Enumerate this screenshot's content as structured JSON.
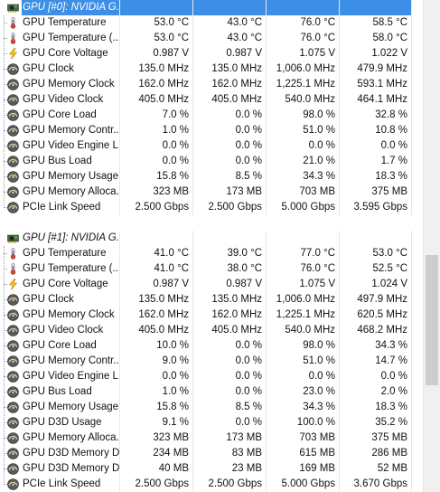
{
  "colors": {
    "selection": "#3d8ee6",
    "thumb": "#cdcdcd"
  },
  "groups": [
    {
      "label": "GPU [#0]: NVIDIA G...",
      "icon": "gpu-chip-icon",
      "selected": true,
      "rows": [
        {
          "icon": "thermometer-icon",
          "label": "GPU Temperature",
          "values": [
            "53.0 °C",
            "43.0 °C",
            "76.0 °C",
            "58.5 °C"
          ]
        },
        {
          "icon": "thermometer-icon",
          "label": "GPU Temperature (...",
          "values": [
            "53.0 °C",
            "43.0 °C",
            "76.0 °C",
            "58.0 °C"
          ]
        },
        {
          "icon": "lightning-icon",
          "label": "GPU Core Voltage",
          "values": [
            "0.987 V",
            "0.987 V",
            "1.075 V",
            "1.022 V"
          ]
        },
        {
          "icon": "gauge-icon",
          "label": "GPU Clock",
          "values": [
            "135.0 MHz",
            "135.0 MHz",
            "1,006.0 MHz",
            "479.9 MHz"
          ]
        },
        {
          "icon": "gauge-icon",
          "label": "GPU Memory Clock",
          "values": [
            "162.0 MHz",
            "162.0 MHz",
            "1,225.1 MHz",
            "593.1 MHz"
          ]
        },
        {
          "icon": "gauge-icon",
          "label": "GPU Video Clock",
          "values": [
            "405.0 MHz",
            "405.0 MHz",
            "540.0 MHz",
            "464.1 MHz"
          ]
        },
        {
          "icon": "gauge-icon",
          "label": "GPU Core Load",
          "values": [
            "7.0 %",
            "0.0 %",
            "98.0 %",
            "32.8 %"
          ]
        },
        {
          "icon": "gauge-icon",
          "label": "GPU Memory Contr...",
          "values": [
            "1.0 %",
            "0.0 %",
            "51.0 %",
            "10.8 %"
          ]
        },
        {
          "icon": "gauge-icon",
          "label": "GPU Video Engine L...",
          "values": [
            "0.0 %",
            "0.0 %",
            "0.0 %",
            "0.0 %"
          ]
        },
        {
          "icon": "gauge-icon",
          "label": "GPU Bus Load",
          "values": [
            "0.0 %",
            "0.0 %",
            "21.0 %",
            "1.7 %"
          ]
        },
        {
          "icon": "gauge-icon",
          "label": "GPU Memory Usage",
          "values": [
            "15.8 %",
            "8.5 %",
            "34.3 %",
            "18.3 %"
          ]
        },
        {
          "icon": "gauge-icon",
          "label": "GPU Memory Alloca...",
          "values": [
            "323 MB",
            "173 MB",
            "703 MB",
            "375 MB"
          ]
        },
        {
          "icon": "gauge-icon",
          "label": "PCIe Link Speed",
          "values": [
            "2.500 Gbps",
            "2.500 Gbps",
            "5.000 Gbps",
            "3.595 Gbps"
          ]
        }
      ]
    },
    {
      "label": "GPU [#1]: NVIDIA G...",
      "icon": "gpu-chip-icon",
      "selected": false,
      "rows": [
        {
          "icon": "thermometer-icon",
          "label": "GPU Temperature",
          "values": [
            "41.0 °C",
            "39.0 °C",
            "77.0 °C",
            "53.0 °C"
          ]
        },
        {
          "icon": "thermometer-icon",
          "label": "GPU Temperature (...",
          "values": [
            "41.0 °C",
            "38.0 °C",
            "76.0 °C",
            "52.5 °C"
          ]
        },
        {
          "icon": "lightning-icon",
          "label": "GPU Core Voltage",
          "values": [
            "0.987 V",
            "0.987 V",
            "1.075 V",
            "1.024 V"
          ]
        },
        {
          "icon": "gauge-icon",
          "label": "GPU Clock",
          "values": [
            "135.0 MHz",
            "135.0 MHz",
            "1,006.0 MHz",
            "497.9 MHz"
          ]
        },
        {
          "icon": "gauge-icon",
          "label": "GPU Memory Clock",
          "values": [
            "162.0 MHz",
            "162.0 MHz",
            "1,225.1 MHz",
            "620.5 MHz"
          ]
        },
        {
          "icon": "gauge-icon",
          "label": "GPU Video Clock",
          "values": [
            "405.0 MHz",
            "405.0 MHz",
            "540.0 MHz",
            "468.2 MHz"
          ]
        },
        {
          "icon": "gauge-icon",
          "label": "GPU Core Load",
          "values": [
            "10.0 %",
            "0.0 %",
            "98.0 %",
            "34.3 %"
          ]
        },
        {
          "icon": "gauge-icon",
          "label": "GPU Memory Contr...",
          "values": [
            "9.0 %",
            "0.0 %",
            "51.0 %",
            "14.7 %"
          ]
        },
        {
          "icon": "gauge-icon",
          "label": "GPU Video Engine L...",
          "values": [
            "0.0 %",
            "0.0 %",
            "0.0 %",
            "0.0 %"
          ]
        },
        {
          "icon": "gauge-icon",
          "label": "GPU Bus Load",
          "values": [
            "1.0 %",
            "0.0 %",
            "23.0 %",
            "2.0 %"
          ]
        },
        {
          "icon": "gauge-icon",
          "label": "GPU Memory Usage",
          "values": [
            "15.8 %",
            "8.5 %",
            "34.3 %",
            "18.3 %"
          ]
        },
        {
          "icon": "gauge-icon",
          "label": "GPU D3D Usage",
          "values": [
            "9.1 %",
            "0.0 %",
            "100.0 %",
            "35.2 %"
          ]
        },
        {
          "icon": "gauge-icon",
          "label": "GPU Memory Alloca...",
          "values": [
            "323 MB",
            "173 MB",
            "703 MB",
            "375 MB"
          ]
        },
        {
          "icon": "gauge-icon",
          "label": "GPU D3D Memory D...",
          "values": [
            "234 MB",
            "83 MB",
            "615 MB",
            "286 MB"
          ]
        },
        {
          "icon": "gauge-icon",
          "label": "GPU D3D Memory D...",
          "values": [
            "40 MB",
            "23 MB",
            "169 MB",
            "52 MB"
          ]
        },
        {
          "icon": "gauge-icon",
          "label": "PCIe Link Speed",
          "values": [
            "2.500 Gbps",
            "2.500 Gbps",
            "5.000 Gbps",
            "3.670 Gbps"
          ]
        }
      ]
    }
  ]
}
